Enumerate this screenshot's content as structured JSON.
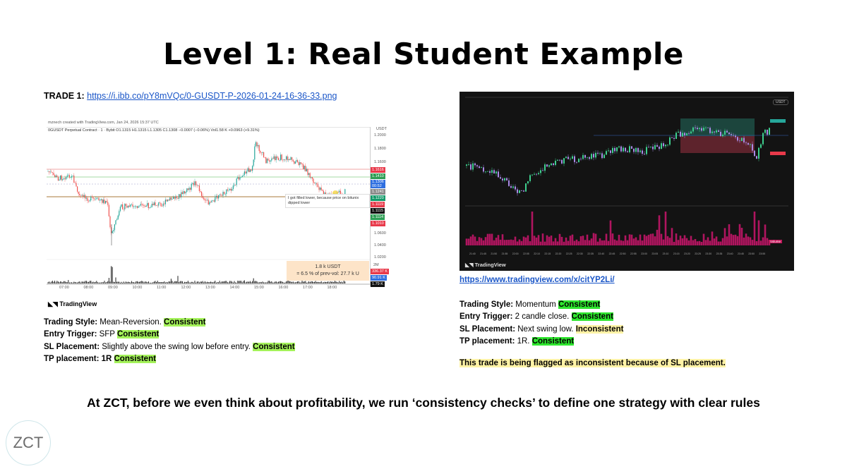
{
  "title": "Level 1: Real Student Example",
  "trade1": {
    "label": "TRADE 1:",
    "link": "https://i.ibb.co/pY8mVQc/0-GUSDT-P-2026-01-24-16-36-33.png",
    "chart": {
      "created": "mznech created with TradingView.com, Jan 24, 2026 15:37 UTC",
      "symbol_line": "0GUSDT Perpetual Contract · 1 · Bybit  O1.1315  H1.1315  L1.1305  C1.1308  −0.0007 (−0.06%)  Vol1.58 K  +0.0963 (+9.31%)",
      "currency": "USDT",
      "price_ticks": [
        "1.2000",
        "1.1800",
        "1.1600",
        "1.0600",
        "1.0400",
        "1.0200"
      ],
      "price_labels": [
        {
          "text": "1.1616",
          "color": "#e8394a"
        },
        {
          "text": "1.1410",
          "color": "#2e9e55"
        },
        {
          "text": "1.1306\n00:52",
          "color": "#2f6fe0"
        },
        {
          "text": "1.1241",
          "color": "#8c8c8c"
        },
        {
          "text": "1.1220",
          "color": "#169b6b"
        },
        {
          "text": "1.1119",
          "color": "#e8394a"
        },
        {
          "text": "1.1115",
          "color": "#111111"
        },
        {
          "text": "1.1114",
          "color": "#2e9e55"
        },
        {
          "text": "1.1010",
          "color": "#e8394a"
        }
      ],
      "annotation": "I got filled lower, because price on bitunix dipped lower",
      "volume_note_1": "1.8 k USDT",
      "volume_note_2": "= 6.5 % of prev-vol: 27.7 k U",
      "volume_axis": "2M",
      "volume_labels": [
        {
          "text": "336.37 K",
          "color": "#e8394a"
        },
        {
          "text": "90.91 K",
          "color": "#2f6fe0"
        },
        {
          "text": "1.79 K",
          "color": "#111111"
        }
      ],
      "time_ticks": [
        "07:00",
        "08:00",
        "09:00",
        "10:00",
        "11:00",
        "12:00",
        "13:00",
        "14:00",
        "15:00",
        "16:00",
        "17:00",
        "18:00"
      ],
      "brand": "TradingView"
    },
    "notes": [
      {
        "label": "Trading Style:",
        "text": " Mean-Reversion. ",
        "verdict": "Consistent"
      },
      {
        "label": "Entry Trigger:",
        "text": " SFP ",
        "verdict": "Consistent"
      },
      {
        "label": "SL Placement:",
        "text": " Slightly above the swing low before entry. ",
        "verdict": "Consistent"
      },
      {
        "label": "TP placement: 1R",
        "text": " ",
        "verdict": "Consistent"
      }
    ]
  },
  "trade2": {
    "link": "https://www.tradingview.com/x/citYP2Li/",
    "chart": {
      "currency": "USDT",
      "volume_tag": "Volume",
      "brand": "TradingView",
      "time_ticks": [
        "21:40",
        "21:45",
        "21:50",
        "21:55",
        "22:00",
        "22:05",
        "22:10",
        "22:15",
        "22:20",
        "22:25",
        "22:30",
        "22:35",
        "22:40",
        "22:45",
        "22:50",
        "22:55",
        "23:00",
        "23:05",
        "23:10",
        "23:15",
        "23:20",
        "23:25",
        "23:30",
        "23:35",
        "23:40",
        "23:45",
        "23:50",
        "23:55"
      ]
    },
    "notes": [
      {
        "label": "Trading Style:",
        "text": " Momentum ",
        "verdict": "Consistent",
        "verdict_style": "green"
      },
      {
        "label": "Entry Trigger:",
        "text": " 2 candle close. ",
        "verdict": "Consistent",
        "verdict_style": "green"
      },
      {
        "label": "SL Placement:",
        "text": " Next swing low. ",
        "verdict": "Inconsistent",
        "verdict_style": "yellow"
      },
      {
        "label": "TP placement:",
        "text": " 1R. ",
        "verdict": "Consistent",
        "verdict_style": "green"
      }
    ],
    "flag": "This trade is being flagged as inconsistent because of SL placement."
  },
  "bottom_text": "At ZCT, before we even think about profitability, we run ‘consistency checks’ to define one strategy with clear rules",
  "logo": "ZCT",
  "colors": {
    "lime": "#a4f25a",
    "green": "#2ee62e",
    "yellow": "#fff3a6",
    "link": "#1a56c8",
    "volume_bar": "#b0155f"
  }
}
